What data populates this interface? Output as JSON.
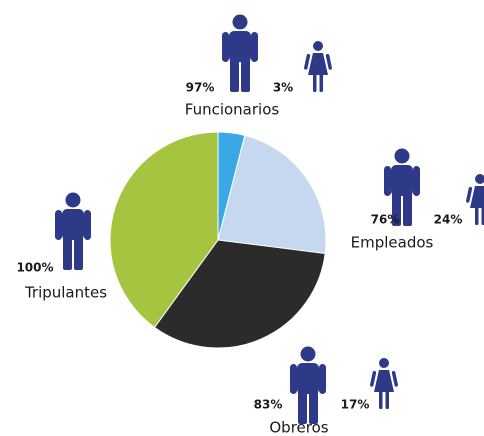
{
  "chart_data": {
    "type": "pie",
    "categories": [
      "Funcionarios",
      "Empleados",
      "Obreros",
      "Tripulantes"
    ],
    "values": [
      4,
      23,
      33,
      40
    ],
    "colors": [
      "#3aa8e6",
      "#c5d8f0",
      "#2b2b2b",
      "#a5c43f"
    ],
    "male_labels": [
      "97%",
      "76%",
      "83%",
      "100%"
    ],
    "female_labels": [
      "3%",
      "24%",
      "17%",
      null
    ]
  }
}
